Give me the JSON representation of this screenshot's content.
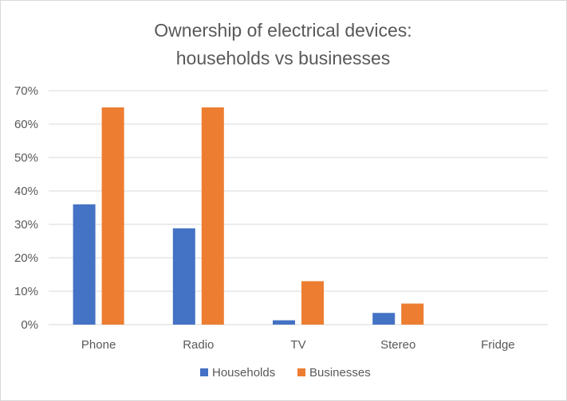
{
  "chart_data": {
    "type": "bar",
    "title_lines": [
      "Ownership of electrical devices:",
      "households vs businesses"
    ],
    "xlabel": "",
    "ylabel": "",
    "categories": [
      "Phone",
      "Radio",
      "TV",
      "Stereo",
      "Fridge"
    ],
    "series": [
      {
        "name": "Households",
        "color": "#4472c4",
        "values": [
          0.36,
          0.288,
          0.013,
          0.035,
          0.0
        ]
      },
      {
        "name": "Businesses",
        "color": "#ed7d31",
        "values": [
          0.65,
          0.65,
          0.13,
          0.063,
          0.0
        ]
      }
    ],
    "ylim": [
      0,
      0.7
    ],
    "yticks": [
      0,
      0.1,
      0.2,
      0.3,
      0.4,
      0.5,
      0.6,
      0.7
    ],
    "ytick_labels": [
      "0%",
      "10%",
      "20%",
      "30%",
      "40%",
      "50%",
      "60%",
      "70%"
    ],
    "grid": true,
    "legend": "bottom",
    "gridline_color": "#d9d9d9"
  }
}
